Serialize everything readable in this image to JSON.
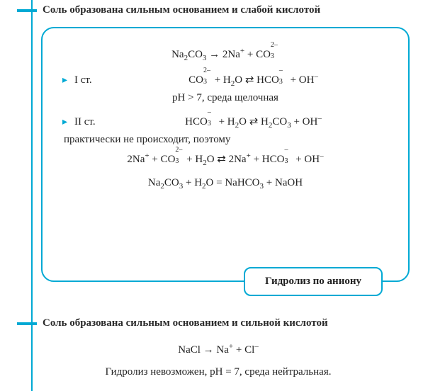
{
  "colors": {
    "accent": "#00a9d4",
    "text": "#222222",
    "background": "#ffffff"
  },
  "section1": {
    "title": "Соль образована сильным основанием и слабой кислотой",
    "eq_main": "Na₂CO₃ → 2Na⁺ + CO₃²⁻",
    "stage1_label": "I ст.",
    "stage1_eq": "CO₃²⁻ + H₂O ⇄ HCO₃⁻ + OH⁻",
    "ph_text": "pH > 7, среда щелочная",
    "stage2_label": "II ст.",
    "stage2_eq": "HCO₃⁻ + H₂O ⇄ H₂CO₃ + OH⁻",
    "note": "практически не происходит, поэтому",
    "eq_sum1": "2Na⁺ + CO₃²⁻ + H₂O ⇄ 2Na⁺ + HCO₃⁻ + OH⁻",
    "eq_sum2": "Na₂CO₃ + H₂O = NaHCO₃ + NaOH",
    "badge": "Гидролиз по аниону"
  },
  "section2": {
    "title": "Соль образована сильным основанием и сильной кислотой",
    "eq": "NaCl → Na⁺ + Cl⁻",
    "note": "Гидролиз невозможен, pH = 7, среда нейтральная."
  }
}
